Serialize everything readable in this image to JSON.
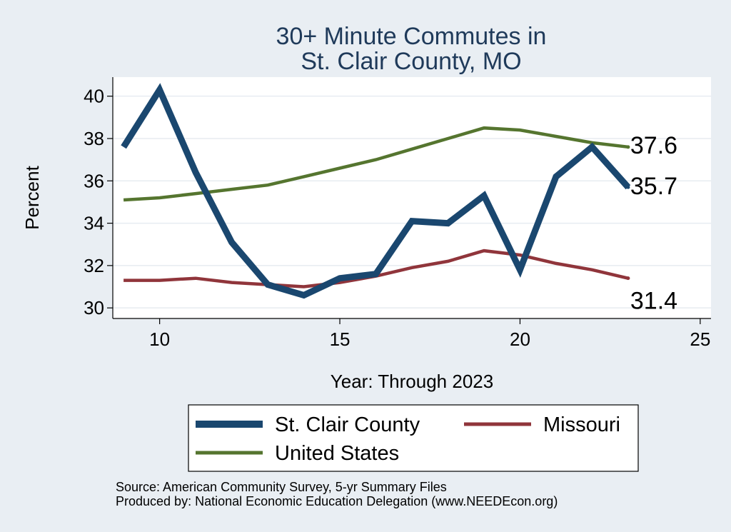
{
  "chart_data": {
    "type": "line",
    "title_lines": [
      "30+ Minute Commutes in",
      "St. Clair County, MO"
    ],
    "xlabel": "Year: Through 2023",
    "ylabel": "Percent",
    "xlim": [
      8.7,
      25.3
    ],
    "ylim": [
      29.5,
      40.9
    ],
    "xticks": [
      10,
      15,
      20,
      25
    ],
    "yticks": [
      30,
      32,
      34,
      36,
      38,
      40
    ],
    "grid": true,
    "x": [
      9,
      10,
      11,
      12,
      13,
      14,
      15,
      16,
      17,
      18,
      19,
      20,
      21,
      22,
      23
    ],
    "series": [
      {
        "name": "St. Clair County",
        "color": "#1a476f",
        "values": [
          37.6,
          40.3,
          36.4,
          33.1,
          31.1,
          30.6,
          31.4,
          31.6,
          34.1,
          34.0,
          35.3,
          31.8,
          36.2,
          37.6,
          35.7
        ],
        "end_label": "35.7"
      },
      {
        "name": "Missouri",
        "color": "#90353b",
        "values": [
          31.3,
          31.3,
          31.4,
          31.2,
          31.1,
          31.0,
          31.2,
          31.5,
          31.9,
          32.2,
          32.7,
          32.5,
          32.1,
          31.8,
          31.4
        ],
        "end_label": "31.4"
      },
      {
        "name": "United States",
        "color": "#55752f",
        "values": [
          35.1,
          35.2,
          35.4,
          35.6,
          35.8,
          36.2,
          36.6,
          37.0,
          37.5,
          38.0,
          38.5,
          38.4,
          38.1,
          37.8,
          37.6
        ],
        "end_label": "37.6"
      }
    ],
    "legend_position": "bottom",
    "source_lines": [
      "Source: American Community Survey, 5-yr Summary Files",
      "Produced by: National Economic Education Delegation (www.NEEDEcon.org)"
    ]
  }
}
